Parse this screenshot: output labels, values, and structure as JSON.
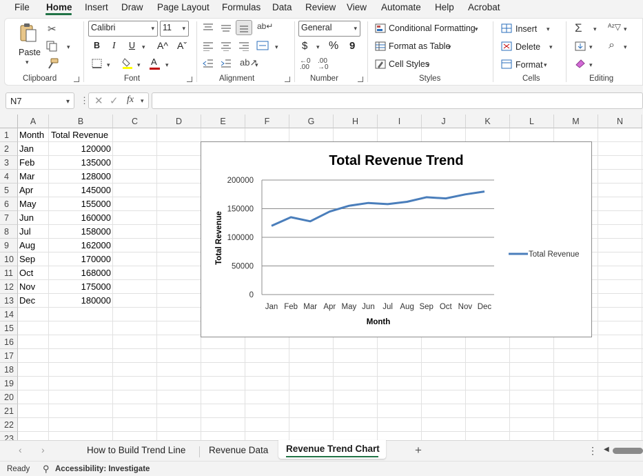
{
  "menu": [
    "File",
    "Home",
    "Insert",
    "Draw",
    "Page Layout",
    "Formulas",
    "Data",
    "Review",
    "View",
    "Automate",
    "Help",
    "Acrobat"
  ],
  "ribbon": {
    "clipboard": {
      "paste_label": "Paste",
      "group_label": "Clipboard"
    },
    "font": {
      "font_name": "Calibri",
      "font_size": "11",
      "group_label": "Font",
      "bold": "B",
      "italic": "I",
      "underline": "U",
      "grow": "A^",
      "shrink": "Aˇ",
      "font_color_letter": "A"
    },
    "alignment": {
      "group_label": "Alignment"
    },
    "number": {
      "format": "General",
      "currency": "$",
      "percent": "%",
      "comma": "9",
      "group_label": "Number"
    },
    "styles": {
      "conditional": "Conditional Formatting",
      "format_table": "Format as Table",
      "cell_styles": "Cell Styles",
      "group_label": "Styles"
    },
    "cells": {
      "insert": "Insert",
      "delete": "Delete",
      "format": "Format",
      "group_label": "Cells"
    },
    "editing": {
      "group_label": "Editing"
    },
    "colors": {
      "highlight": "#ffff00",
      "font_color": "#c00000",
      "accent": "#217346"
    }
  },
  "formula_bar": {
    "name_box": "N7",
    "formula": ""
  },
  "columns": [
    "A",
    "B",
    "C",
    "D",
    "E",
    "F",
    "G",
    "H",
    "I",
    "J",
    "K",
    "L",
    "M",
    "N"
  ],
  "rows": [
    "1",
    "2",
    "3",
    "4",
    "5",
    "6",
    "7",
    "8",
    "9",
    "10",
    "11",
    "12",
    "13",
    "14",
    "15",
    "16",
    "17",
    "18",
    "19",
    "20",
    "21",
    "22",
    "23"
  ],
  "table": {
    "header": [
      "Month",
      "Total Revenue"
    ],
    "months": [
      "Jan",
      "Feb",
      "Mar",
      "Apr",
      "May",
      "Jun",
      "Jul",
      "Aug",
      "Sep",
      "Oct",
      "Nov",
      "Dec"
    ],
    "revenue": [
      "120000",
      "135000",
      "128000",
      "145000",
      "155000",
      "160000",
      "158000",
      "162000",
      "170000",
      "168000",
      "175000",
      "180000"
    ]
  },
  "chart_data": {
    "type": "line",
    "title": "Total Revenue Trend",
    "xlabel": "Month",
    "ylabel": "Total Revenue",
    "categories": [
      "Jan",
      "Feb",
      "Mar",
      "Apr",
      "May",
      "Jun",
      "Jul",
      "Aug",
      "Sep",
      "Oct",
      "Nov",
      "Dec"
    ],
    "series": [
      {
        "name": "Total Revenue",
        "values": [
          120000,
          135000,
          128000,
          145000,
          155000,
          160000,
          158000,
          162000,
          170000,
          168000,
          175000,
          180000
        ],
        "color": "#4a7ebb"
      }
    ],
    "ylim": [
      0,
      200000
    ],
    "yticks": [
      "200000",
      "150000",
      "100000",
      "50000",
      "0"
    ],
    "grid": true,
    "legend": "right"
  },
  "sheets": {
    "tabs": [
      "How to Build Trend Line",
      "Revenue Data",
      "Revenue Trend Chart"
    ],
    "active": "Revenue Trend Chart",
    "add": "+"
  },
  "status": {
    "ready": "Ready",
    "accessibility": "Accessibility: Investigate"
  }
}
